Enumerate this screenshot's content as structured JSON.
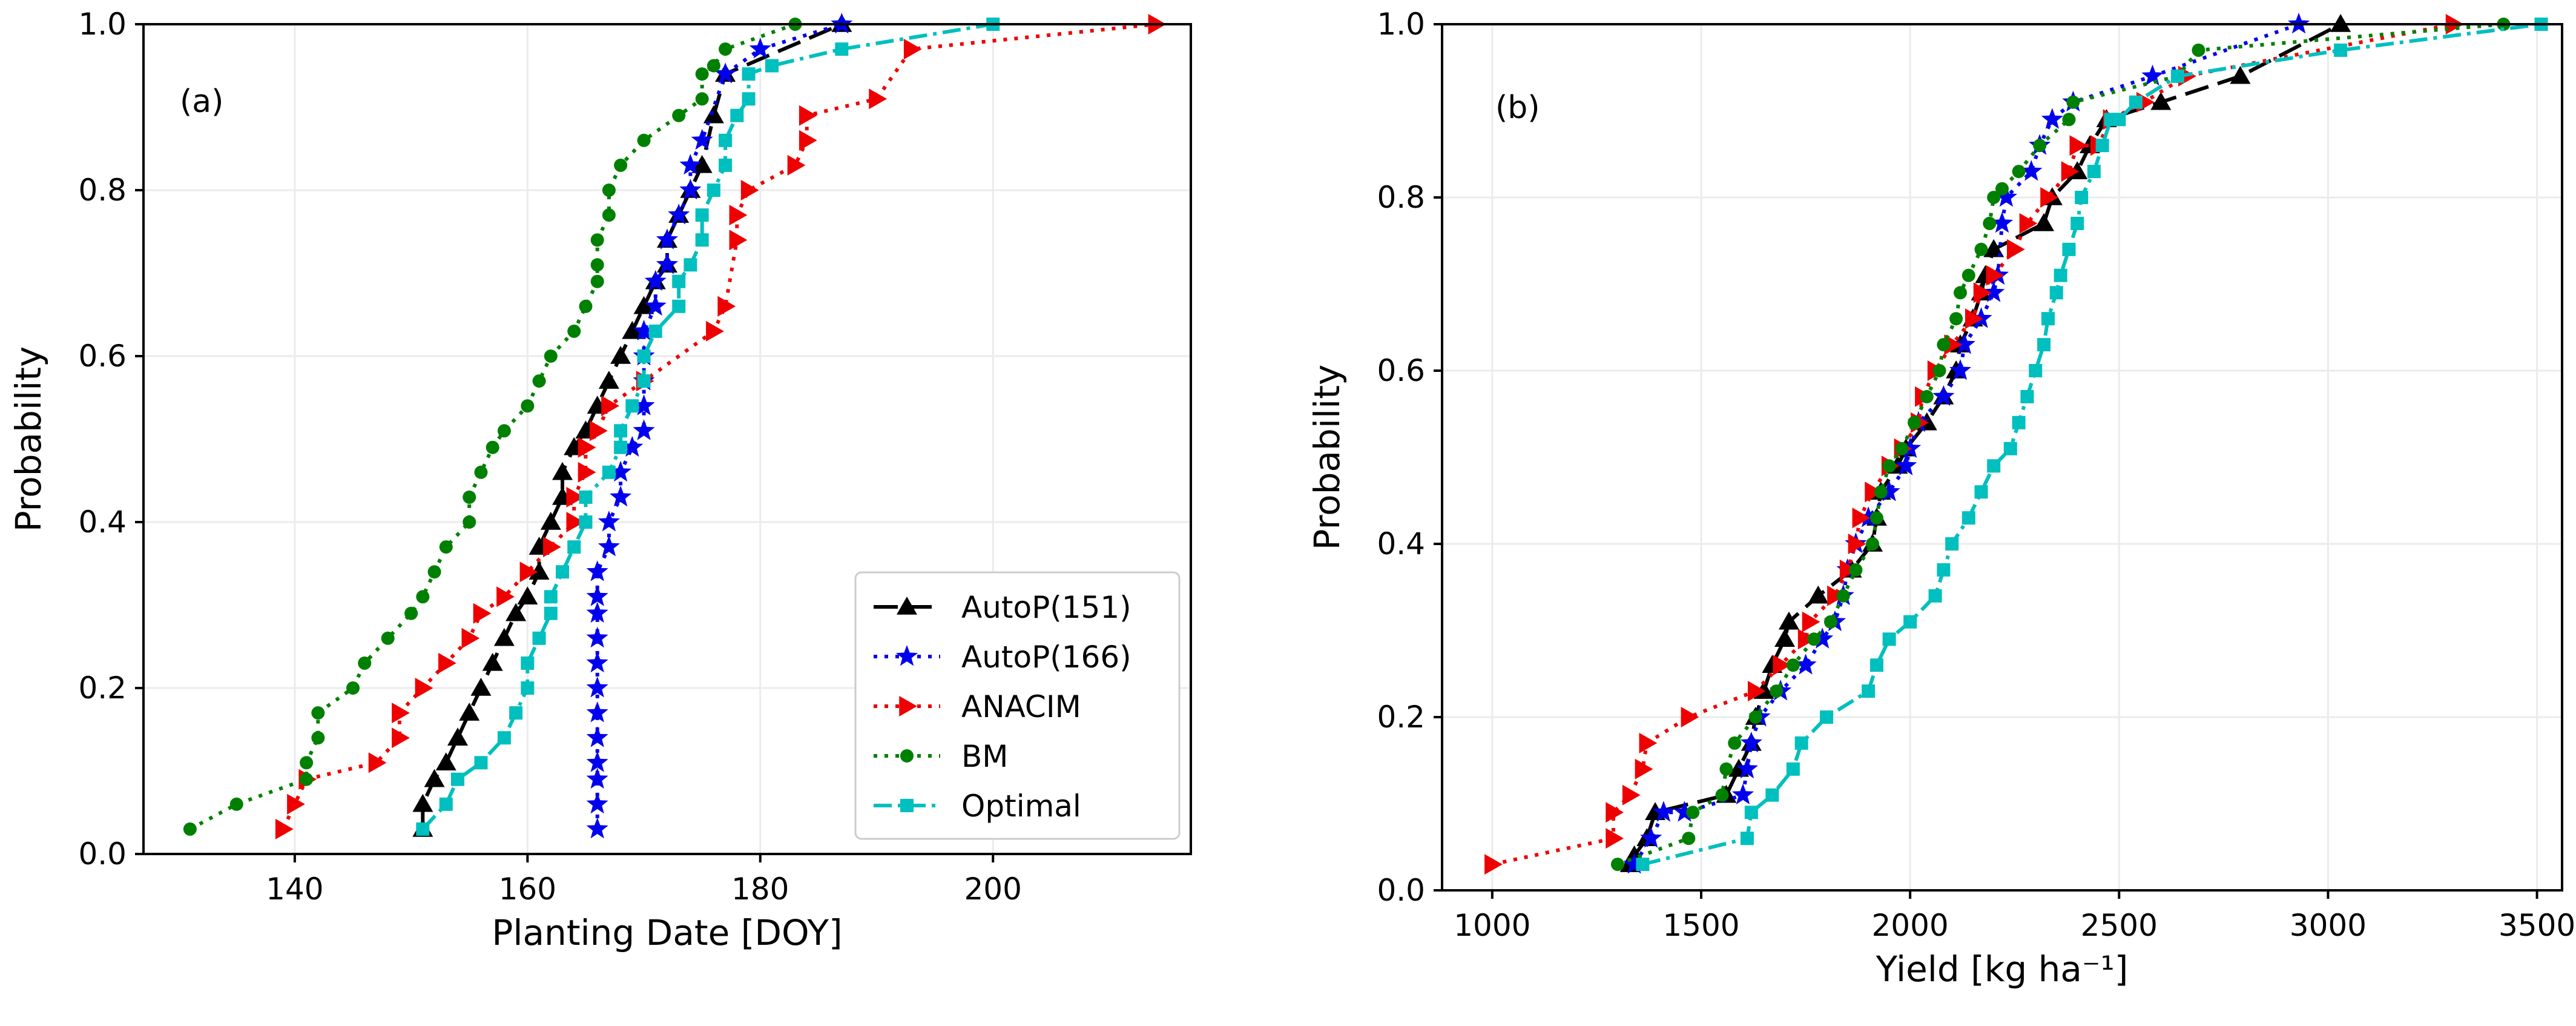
{
  "chart_data": [
    {
      "type": "line",
      "panel_label": "(a)",
      "xlabel": "Planting Date [DOY]",
      "ylabel": "Probability",
      "xlim": [
        127,
        217
      ],
      "ylim": [
        0,
        1.0
      ],
      "xticks": [
        140,
        160,
        180,
        200
      ],
      "yticks": [
        0.0,
        0.2,
        0.4,
        0.6,
        0.8,
        1.0
      ],
      "xtick_labels": [
        "140",
        "160",
        "180",
        "200"
      ],
      "ytick_labels": [
        "0.0",
        "0.2",
        "0.4",
        "0.6",
        "0.8",
        "1.0"
      ],
      "grid": true,
      "legend": "lower-right",
      "series": [
        {
          "name": "AutoP(151)",
          "color": "#000000",
          "marker": "triangle-up",
          "linestyle": "dashed",
          "x": [
            151,
            151,
            152,
            153,
            154,
            155,
            156,
            157,
            158,
            159,
            160,
            161,
            161,
            162,
            163,
            163,
            164,
            165,
            166,
            167,
            168,
            169,
            170,
            171,
            172,
            172,
            173,
            174,
            175,
            176,
            177,
            187
          ],
          "y": [
            0.03,
            0.06,
            0.09,
            0.11,
            0.14,
            0.17,
            0.2,
            0.23,
            0.26,
            0.29,
            0.31,
            0.34,
            0.37,
            0.4,
            0.43,
            0.46,
            0.49,
            0.51,
            0.54,
            0.57,
            0.6,
            0.63,
            0.66,
            0.69,
            0.71,
            0.74,
            0.77,
            0.8,
            0.83,
            0.89,
            0.94,
            1.0
          ]
        },
        {
          "name": "AutoP(166)",
          "color": "#0000ee",
          "marker": "star",
          "linestyle": "dotted",
          "x": [
            166,
            166,
            166,
            166,
            166,
            166,
            166,
            166,
            166,
            166,
            166,
            166,
            167,
            167,
            168,
            168,
            169,
            170,
            170,
            170,
            170,
            170,
            171,
            171,
            172,
            172,
            173,
            174,
            174,
            175,
            177,
            180,
            187
          ],
          "y": [
            0.03,
            0.06,
            0.09,
            0.11,
            0.14,
            0.17,
            0.2,
            0.23,
            0.26,
            0.29,
            0.31,
            0.34,
            0.37,
            0.4,
            0.43,
            0.46,
            0.49,
            0.51,
            0.54,
            0.57,
            0.6,
            0.63,
            0.66,
            0.69,
            0.71,
            0.74,
            0.77,
            0.8,
            0.83,
            0.86,
            0.94,
            0.97,
            1.0
          ]
        },
        {
          "name": "ANACIM",
          "color": "#ee0000",
          "marker": "triangle-right",
          "linestyle": "dotted",
          "x": [
            139,
            140,
            141,
            147,
            149,
            149,
            151,
            153,
            155,
            156,
            158,
            160,
            162,
            164,
            164,
            165,
            165,
            166,
            167,
            170,
            176,
            177,
            178,
            178,
            179,
            183,
            184,
            184,
            190,
            193,
            214
          ],
          "y": [
            0.03,
            0.06,
            0.09,
            0.11,
            0.14,
            0.17,
            0.2,
            0.23,
            0.26,
            0.29,
            0.31,
            0.34,
            0.37,
            0.4,
            0.43,
            0.46,
            0.49,
            0.51,
            0.54,
            0.57,
            0.63,
            0.66,
            0.74,
            0.77,
            0.8,
            0.83,
            0.86,
            0.89,
            0.91,
            0.97,
            1.0
          ]
        },
        {
          "name": "BM",
          "color": "#008000",
          "marker": "circle",
          "linestyle": "dotted",
          "x": [
            131,
            135,
            141,
            141,
            142,
            142,
            145,
            146,
            148,
            150,
            151,
            152,
            153,
            155,
            155,
            156,
            157,
            158,
            160,
            161,
            162,
            164,
            165,
            166,
            166,
            166,
            167,
            167,
            168,
            170,
            173,
            175,
            175,
            176,
            177,
            183
          ],
          "y": [
            0.03,
            0.06,
            0.09,
            0.11,
            0.14,
            0.17,
            0.2,
            0.23,
            0.26,
            0.29,
            0.31,
            0.34,
            0.37,
            0.4,
            0.43,
            0.46,
            0.49,
            0.51,
            0.54,
            0.57,
            0.6,
            0.63,
            0.66,
            0.69,
            0.71,
            0.74,
            0.77,
            0.8,
            0.83,
            0.86,
            0.89,
            0.91,
            0.94,
            0.95,
            0.97,
            1.0
          ]
        },
        {
          "name": "Optimal",
          "color": "#00bfbf",
          "marker": "square",
          "linestyle": "dashdot",
          "x": [
            151,
            153,
            154,
            156,
            158,
            159,
            160,
            160,
            161,
            162,
            162,
            163,
            164,
            165,
            165,
            167,
            168,
            168,
            169,
            170,
            170,
            171,
            173,
            173,
            174,
            175,
            175,
            176,
            177,
            177,
            178,
            179,
            179,
            181,
            187,
            200
          ],
          "y": [
            0.03,
            0.06,
            0.09,
            0.11,
            0.14,
            0.17,
            0.2,
            0.23,
            0.26,
            0.29,
            0.31,
            0.34,
            0.37,
            0.4,
            0.43,
            0.46,
            0.49,
            0.51,
            0.54,
            0.57,
            0.6,
            0.63,
            0.66,
            0.69,
            0.71,
            0.74,
            0.77,
            0.8,
            0.83,
            0.86,
            0.89,
            0.91,
            0.94,
            0.95,
            0.97,
            1.0
          ]
        }
      ]
    },
    {
      "type": "line",
      "panel_label": "(b)",
      "xlabel": "Yield [kg ha⁻¹]",
      "ylabel": "Probability",
      "xlim": [
        880,
        3560
      ],
      "ylim": [
        0,
        1.0
      ],
      "xticks": [
        1000,
        1500,
        2000,
        2500,
        3000,
        3500
      ],
      "yticks": [
        0.0,
        0.2,
        0.4,
        0.6,
        0.8,
        1.0
      ],
      "xtick_labels": [
        "1000",
        "1500",
        "2000",
        "2500",
        "3000",
        "3500"
      ],
      "ytick_labels": [
        "0.0",
        "0.2",
        "0.4",
        "0.6",
        "0.8",
        "1.0"
      ],
      "grid": true,
      "series": [
        {
          "name": "AutoP(151)",
          "color": "#000000",
          "marker": "triangle-up",
          "linestyle": "dashed",
          "x": [
            1330,
            1340,
            1370,
            1390,
            1560,
            1590,
            1620,
            1630,
            1650,
            1670,
            1700,
            1710,
            1780,
            1860,
            1910,
            1920,
            1930,
            1970,
            1990,
            2040,
            2080,
            2110,
            2120,
            2150,
            2170,
            2180,
            2200,
            2320,
            2340,
            2400,
            2430,
            2470,
            2600,
            2790,
            3030
          ],
          "y": [
            0.03,
            0.04,
            0.06,
            0.09,
            0.11,
            0.14,
            0.17,
            0.2,
            0.23,
            0.26,
            0.29,
            0.31,
            0.34,
            0.37,
            0.4,
            0.43,
            0.46,
            0.49,
            0.51,
            0.54,
            0.57,
            0.6,
            0.63,
            0.66,
            0.69,
            0.71,
            0.74,
            0.77,
            0.8,
            0.83,
            0.86,
            0.89,
            0.91,
            0.94,
            1.0
          ]
        },
        {
          "name": "AutoP(166)",
          "color": "#0000ee",
          "marker": "star",
          "linestyle": "dotted",
          "x": [
            1340,
            1380,
            1410,
            1460,
            1600,
            1610,
            1620,
            1640,
            1690,
            1750,
            1790,
            1820,
            1840,
            1850,
            1870,
            1900,
            1950,
            1990,
            2000,
            2020,
            2080,
            2120,
            2130,
            2170,
            2200,
            2210,
            2220,
            2230,
            2290,
            2310,
            2340,
            2390,
            2580,
            2930
          ],
          "y": [
            0.03,
            0.06,
            0.09,
            0.09,
            0.11,
            0.14,
            0.17,
            0.2,
            0.23,
            0.26,
            0.29,
            0.31,
            0.34,
            0.37,
            0.4,
            0.43,
            0.46,
            0.49,
            0.51,
            0.54,
            0.57,
            0.6,
            0.63,
            0.66,
            0.69,
            0.71,
            0.77,
            0.8,
            0.83,
            0.86,
            0.89,
            0.91,
            0.94,
            1.0
          ]
        },
        {
          "name": "ANACIM",
          "color": "#ee0000",
          "marker": "triangle-right",
          "linestyle": "dotted",
          "x": [
            1000,
            1290,
            1290,
            1330,
            1360,
            1370,
            1470,
            1630,
            1690,
            1750,
            1760,
            1820,
            1850,
            1870,
            1880,
            1910,
            1950,
            1980,
            2020,
            2030,
            2060,
            2100,
            2150,
            2170,
            2200,
            2250,
            2280,
            2330,
            2380,
            2400,
            2450,
            2480,
            2560,
            2660,
            3300
          ],
          "y": [
            0.03,
            0.06,
            0.09,
            0.11,
            0.14,
            0.17,
            0.2,
            0.23,
            0.26,
            0.29,
            0.31,
            0.34,
            0.37,
            0.4,
            0.43,
            0.46,
            0.49,
            0.51,
            0.54,
            0.57,
            0.6,
            0.63,
            0.66,
            0.69,
            0.71,
            0.74,
            0.77,
            0.8,
            0.83,
            0.86,
            0.86,
            0.89,
            0.91,
            0.94,
            1.0
          ]
        },
        {
          "name": "BM",
          "color": "#008000",
          "marker": "circle",
          "linestyle": "dotted",
          "x": [
            1300,
            1470,
            1480,
            1550,
            1560,
            1580,
            1630,
            1680,
            1720,
            1770,
            1810,
            1840,
            1870,
            1910,
            1920,
            1930,
            1950,
            1980,
            2010,
            2040,
            2070,
            2080,
            2110,
            2120,
            2140,
            2170,
            2190,
            2200,
            2220,
            2260,
            2310,
            2380,
            2390,
            2640,
            2690,
            3420
          ],
          "y": [
            0.03,
            0.06,
            0.09,
            0.11,
            0.14,
            0.17,
            0.2,
            0.23,
            0.26,
            0.29,
            0.31,
            0.34,
            0.37,
            0.4,
            0.43,
            0.46,
            0.49,
            0.51,
            0.54,
            0.57,
            0.6,
            0.63,
            0.66,
            0.69,
            0.71,
            0.74,
            0.77,
            0.8,
            0.81,
            0.83,
            0.86,
            0.89,
            0.91,
            0.94,
            0.97,
            1.0
          ]
        },
        {
          "name": "Optimal",
          "color": "#00bfbf",
          "marker": "square",
          "linestyle": "dashdot",
          "x": [
            1360,
            1610,
            1620,
            1670,
            1720,
            1740,
            1800,
            1900,
            1920,
            1950,
            2000,
            2060,
            2080,
            2100,
            2140,
            2170,
            2200,
            2240,
            2260,
            2280,
            2300,
            2320,
            2330,
            2350,
            2360,
            2380,
            2400,
            2410,
            2440,
            2460,
            2480,
            2500,
            2540,
            2640,
            3030,
            3510
          ],
          "y": [
            0.03,
            0.06,
            0.09,
            0.11,
            0.14,
            0.17,
            0.2,
            0.23,
            0.26,
            0.29,
            0.31,
            0.34,
            0.37,
            0.4,
            0.43,
            0.46,
            0.49,
            0.51,
            0.54,
            0.57,
            0.6,
            0.63,
            0.66,
            0.69,
            0.71,
            0.74,
            0.77,
            0.8,
            0.83,
            0.86,
            0.89,
            0.89,
            0.91,
            0.94,
            0.97,
            1.0
          ]
        }
      ]
    }
  ]
}
